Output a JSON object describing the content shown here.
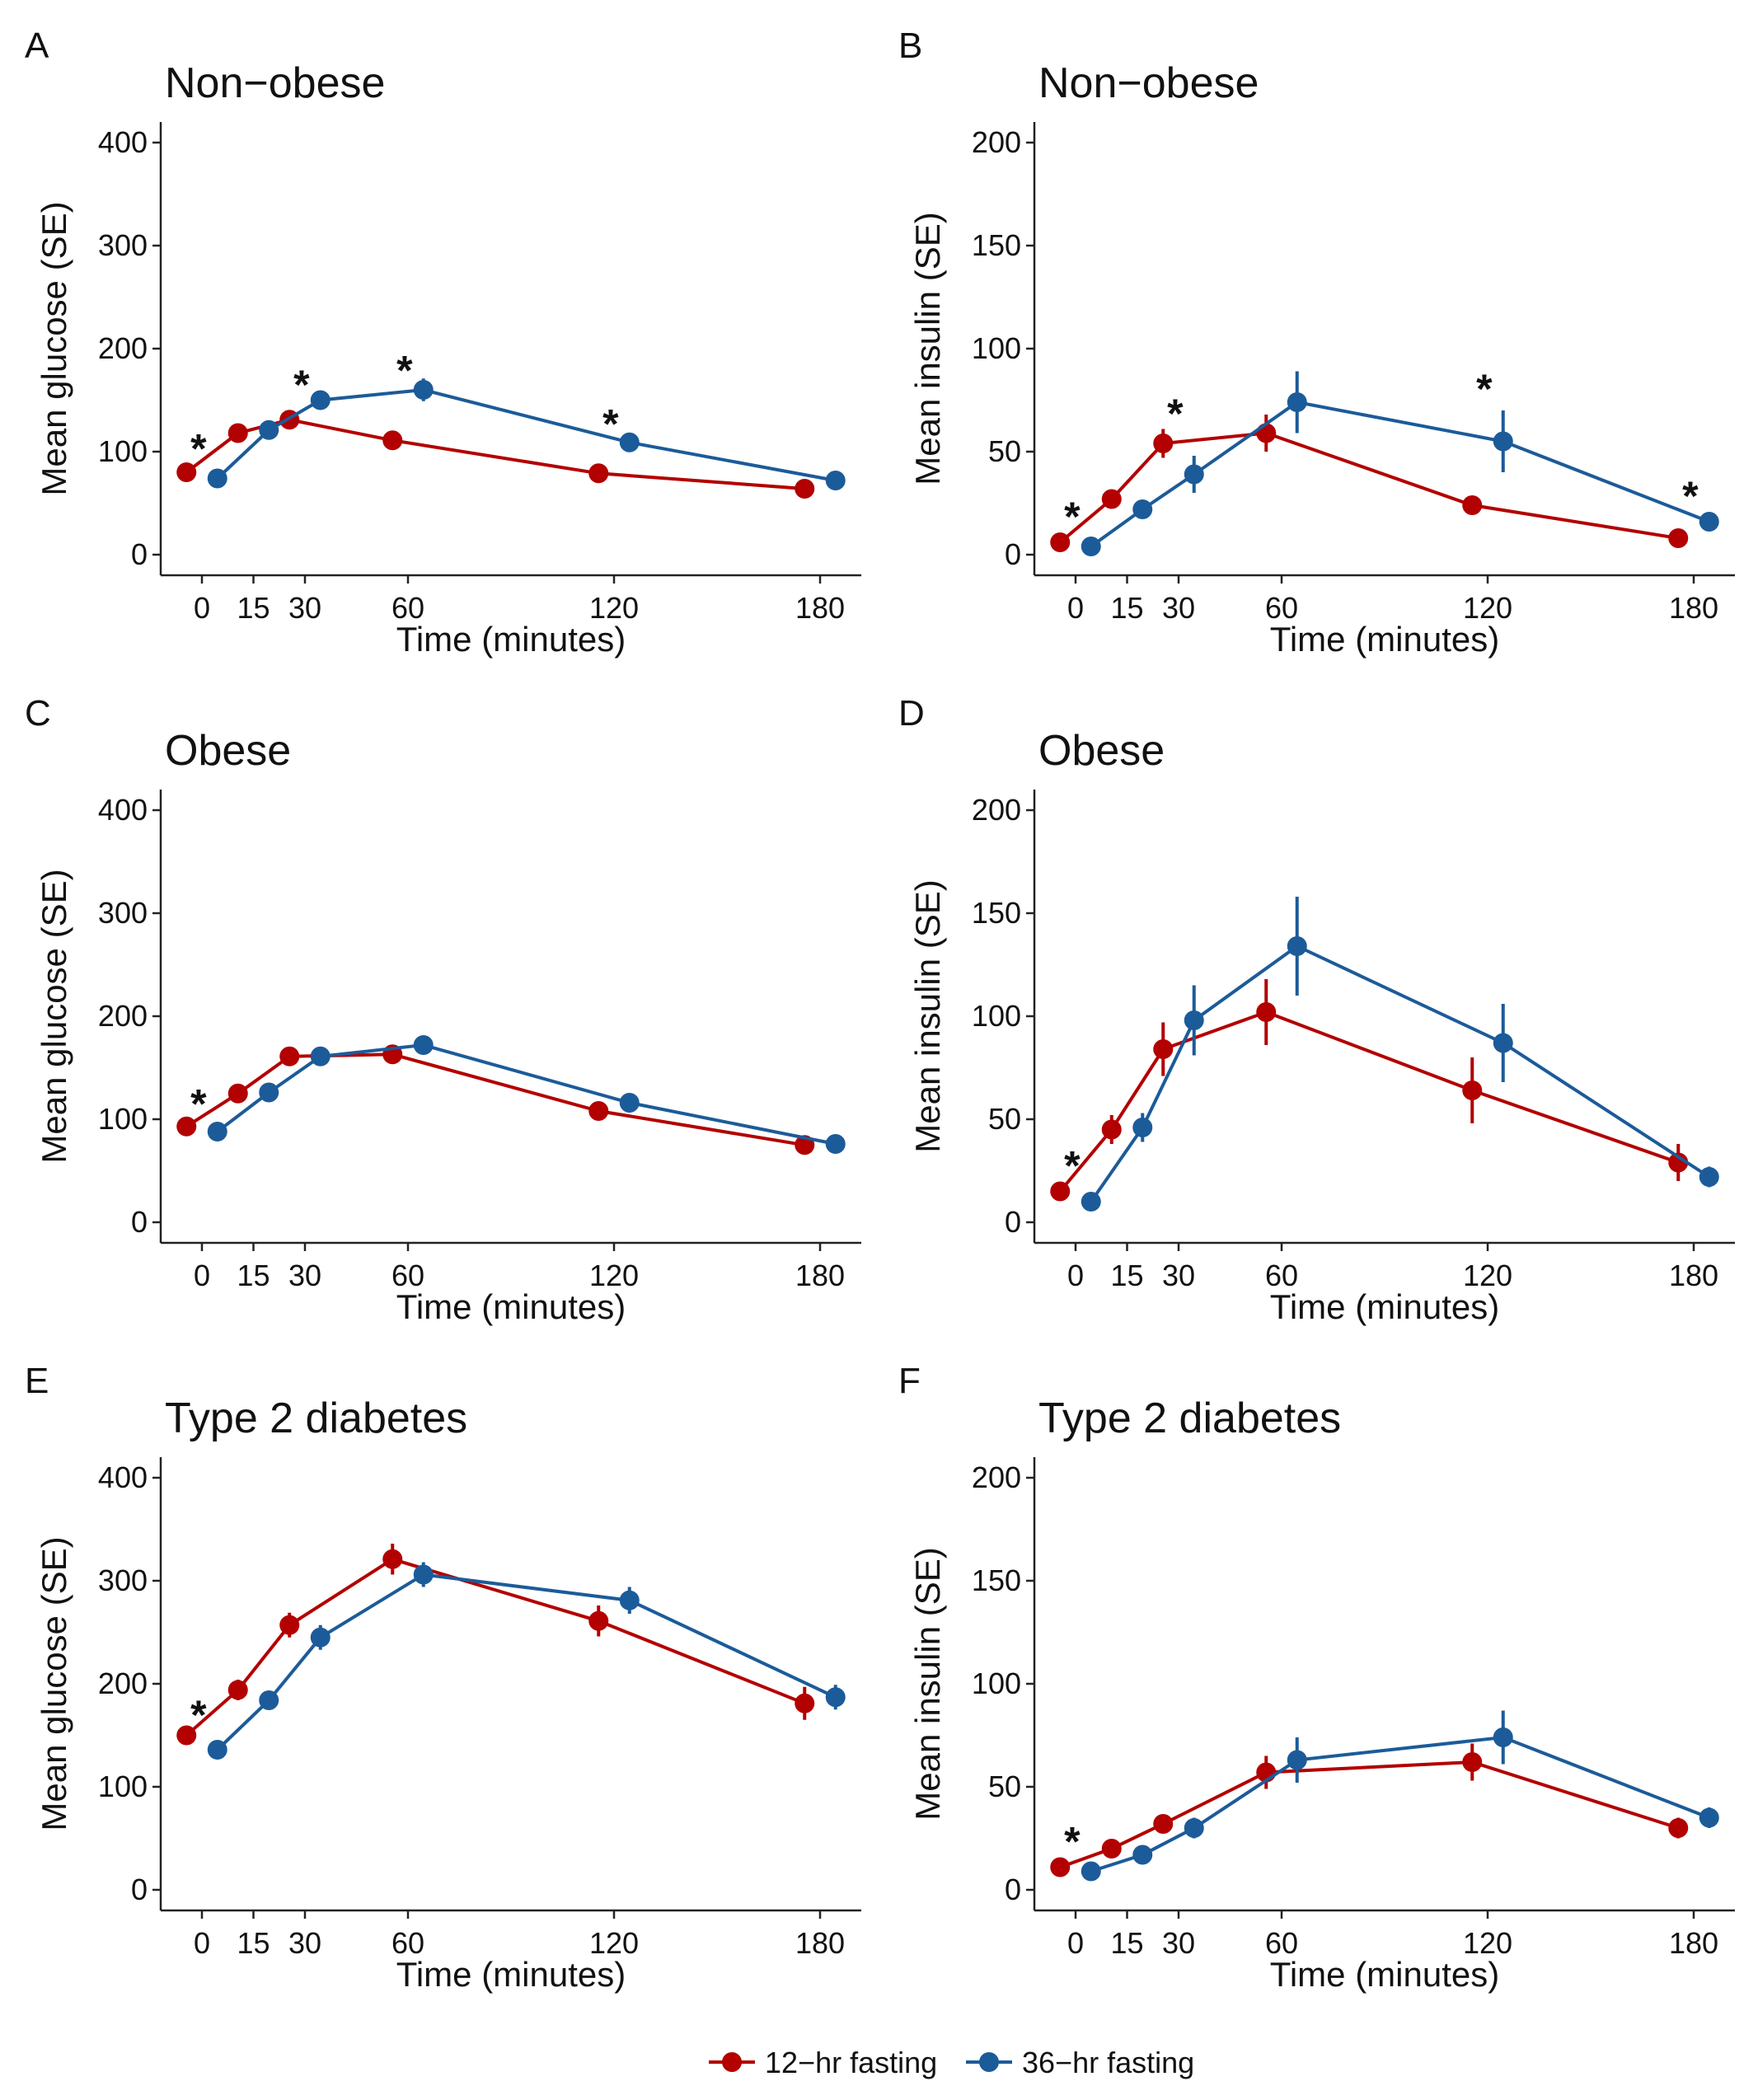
{
  "chart_data": [
    {
      "panel": "A",
      "type": "line",
      "title": "Non−obese",
      "xlabel": "Time (minutes)",
      "ylabel": "Mean glucose (SE)",
      "xticks": [
        0,
        15,
        30,
        60,
        120,
        180
      ],
      "yticks": [
        0,
        100,
        200,
        300,
        400
      ],
      "xlim": [
        -12,
        192
      ],
      "ylim": [
        -20,
        420
      ],
      "series": [
        {
          "name": "12−hr fasting",
          "color": "#b30000",
          "x": [
            0,
            15,
            30,
            60,
            120,
            180
          ],
          "values": [
            80,
            118,
            131,
            111,
            79,
            64
          ],
          "se": [
            4,
            4,
            6,
            9,
            5,
            4
          ]
        },
        {
          "name": "36−hr fasting",
          "color": "#1c5b99",
          "x": [
            0,
            15,
            30,
            60,
            120,
            180
          ],
          "values": [
            74,
            121,
            150,
            160,
            109,
            72
          ],
          "se": [
            4,
            5,
            7,
            11,
            7,
            4
          ]
        }
      ],
      "significance": [
        {
          "x": 0,
          "y": 110,
          "label": "*"
        },
        {
          "x": 30,
          "y": 172,
          "label": "*"
        },
        {
          "x": 60,
          "y": 186,
          "label": "*"
        },
        {
          "x": 120,
          "y": 134,
          "label": "*"
        }
      ]
    },
    {
      "panel": "B",
      "type": "line",
      "title": "Non−obese",
      "xlabel": "Time (minutes)",
      "ylabel": "Mean insulin (SE)",
      "xticks": [
        0,
        15,
        30,
        60,
        120,
        180
      ],
      "yticks": [
        0,
        50,
        100,
        150,
        200
      ],
      "xlim": [
        -12,
        192
      ],
      "ylim": [
        -10,
        210
      ],
      "series": [
        {
          "name": "12−hr fasting",
          "color": "#b30000",
          "x": [
            0,
            15,
            30,
            60,
            120,
            180
          ],
          "values": [
            6,
            27,
            54,
            59,
            24,
            8
          ],
          "se": [
            1,
            3,
            7,
            9,
            3,
            1
          ]
        },
        {
          "name": "36−hr fasting",
          "color": "#1c5b99",
          "x": [
            0,
            15,
            30,
            60,
            120,
            180
          ],
          "values": [
            4,
            22,
            39,
            74,
            55,
            16
          ],
          "se": [
            1,
            3,
            9,
            15,
            15,
            4
          ]
        }
      ],
      "significance": [
        {
          "x": 0,
          "y": 22,
          "label": "*"
        },
        {
          "x": 30,
          "y": 72,
          "label": "*"
        },
        {
          "x": 120,
          "y": 84,
          "label": "*"
        },
        {
          "x": 180,
          "y": 32,
          "label": "*"
        }
      ]
    },
    {
      "panel": "C",
      "type": "line",
      "title": "Obese",
      "xlabel": "Time (minutes)",
      "ylabel": "Mean glucose (SE)",
      "xticks": [
        0,
        15,
        30,
        60,
        120,
        180
      ],
      "yticks": [
        0,
        100,
        200,
        300,
        400
      ],
      "xlim": [
        -12,
        192
      ],
      "ylim": [
        -20,
        420
      ],
      "series": [
        {
          "name": "12−hr fasting",
          "color": "#b30000",
          "x": [
            0,
            15,
            30,
            60,
            120,
            180
          ],
          "values": [
            93,
            125,
            161,
            163,
            108,
            75
          ],
          "se": [
            3,
            4,
            5,
            6,
            5,
            4
          ]
        },
        {
          "name": "36−hr fasting",
          "color": "#1c5b99",
          "x": [
            0,
            15,
            30,
            60,
            120,
            180
          ],
          "values": [
            88,
            126,
            161,
            172,
            116,
            76
          ],
          "se": [
            3,
            4,
            5,
            6,
            5,
            4
          ]
        }
      ],
      "significance": [
        {
          "x": 0,
          "y": 122,
          "label": "*"
        }
      ]
    },
    {
      "panel": "D",
      "type": "line",
      "title": "Obese",
      "xlabel": "Time (minutes)",
      "ylabel": "Mean insulin (SE)",
      "xticks": [
        0,
        15,
        30,
        60,
        120,
        180
      ],
      "yticks": [
        0,
        50,
        100,
        150,
        200
      ],
      "xlim": [
        -12,
        192
      ],
      "ylim": [
        -10,
        210
      ],
      "series": [
        {
          "name": "12−hr fasting",
          "color": "#b30000",
          "x": [
            0,
            15,
            30,
            60,
            120,
            180
          ],
          "values": [
            15,
            45,
            84,
            102,
            64,
            29
          ],
          "se": [
            2,
            7,
            13,
            16,
            16,
            9
          ]
        },
        {
          "name": "36−hr fasting",
          "color": "#1c5b99",
          "x": [
            0,
            15,
            30,
            60,
            120,
            180
          ],
          "values": [
            10,
            46,
            98,
            134,
            87,
            22
          ],
          "se": [
            2,
            7,
            17,
            24,
            19,
            5
          ]
        }
      ],
      "significance": [
        {
          "x": 0,
          "y": 31,
          "label": "*"
        }
      ]
    },
    {
      "panel": "E",
      "type": "line",
      "title": "Type 2 diabetes",
      "xlabel": "Time (minutes)",
      "ylabel": "Mean glucose (SE)",
      "xticks": [
        0,
        15,
        30,
        60,
        120,
        180
      ],
      "yticks": [
        0,
        100,
        200,
        300,
        400
      ],
      "xlim": [
        -12,
        192
      ],
      "ylim": [
        -20,
        420
      ],
      "series": [
        {
          "name": "12−hr fasting",
          "color": "#b30000",
          "x": [
            0,
            15,
            30,
            60,
            120,
            180
          ],
          "values": [
            150,
            194,
            257,
            321,
            261,
            181
          ],
          "se": [
            6,
            10,
            12,
            15,
            15,
            16
          ]
        },
        {
          "name": "36−hr fasting",
          "color": "#1c5b99",
          "x": [
            0,
            15,
            30,
            60,
            120,
            180
          ],
          "values": [
            136,
            184,
            245,
            306,
            281,
            187
          ],
          "se": [
            5,
            8,
            12,
            12,
            13,
            12
          ]
        }
      ],
      "significance": [
        {
          "x": 0,
          "y": 177,
          "label": "*"
        }
      ]
    },
    {
      "panel": "F",
      "type": "line",
      "title": "Type 2 diabetes",
      "xlabel": "Time (minutes)",
      "ylabel": "Mean insulin (SE)",
      "xticks": [
        0,
        15,
        30,
        60,
        120,
        180
      ],
      "yticks": [
        0,
        50,
        100,
        150,
        200
      ],
      "xlim": [
        -12,
        192
      ],
      "ylim": [
        -10,
        210
      ],
      "series": [
        {
          "name": "12−hr fasting",
          "color": "#b30000",
          "x": [
            0,
            15,
            30,
            60,
            120,
            180
          ],
          "values": [
            11,
            20,
            32,
            57,
            62,
            30
          ],
          "se": [
            2,
            3,
            4,
            8,
            9,
            5
          ]
        },
        {
          "name": "36−hr fasting",
          "color": "#1c5b99",
          "x": [
            0,
            15,
            30,
            60,
            120,
            180
          ],
          "values": [
            9,
            17,
            30,
            63,
            74,
            35
          ],
          "se": [
            2,
            3,
            5,
            11,
            13,
            5
          ]
        }
      ],
      "significance": [
        {
          "x": 0,
          "y": 27,
          "label": "*"
        }
      ]
    }
  ],
  "legend": {
    "position": "bottom",
    "entries": [
      {
        "label": "12−hr fasting",
        "color": "#b30000"
      },
      {
        "label": "36−hr fasting",
        "color": "#1c5b99"
      }
    ]
  }
}
